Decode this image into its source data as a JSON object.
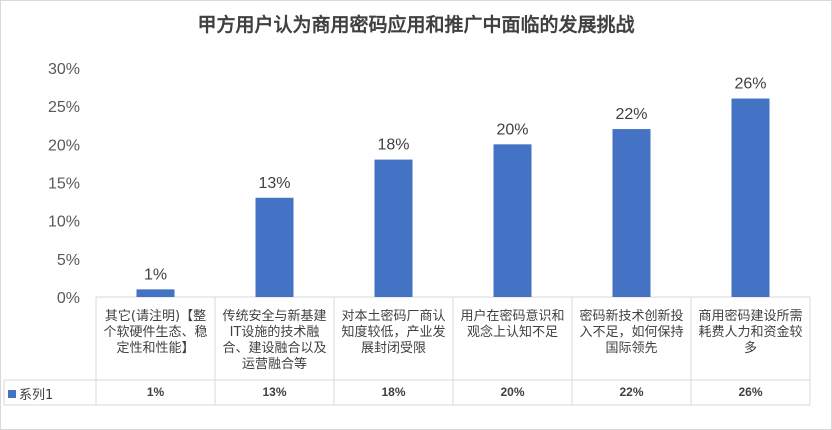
{
  "chart_data": {
    "type": "bar",
    "title": "甲方用户认为商用密码应用和推广中面临的发展挑战",
    "categories": [
      "其它(请注明)【整个软硬件生态、稳定性和性能】",
      "传统安全与新基建IT设施的技术融合、建设融合以及运营融合等",
      "对本土密码厂商认知度较低，产业发展封闭受限",
      "用户在密码意识和观念上认知不足",
      "密码新技术创新投入不足，如何保持国际领先",
      "商用密码建设所需耗费人力和资金较多"
    ],
    "series": [
      {
        "name": "系列1",
        "values": [
          0.01,
          0.13,
          0.18,
          0.2,
          0.22,
          0.26
        ],
        "color": "#4472c4"
      }
    ],
    "data_labels": [
      "1%",
      "13%",
      "18%",
      "20%",
      "22%",
      "26%"
    ],
    "y_ticks": [
      "0%",
      "5%",
      "10%",
      "15%",
      "20%",
      "25%",
      "30%"
    ],
    "ylim": [
      0,
      0.3
    ],
    "grid": false,
    "data_table": true,
    "table_values": [
      "1%",
      "13%",
      "18%",
      "20%",
      "22%",
      "26%"
    ]
  }
}
